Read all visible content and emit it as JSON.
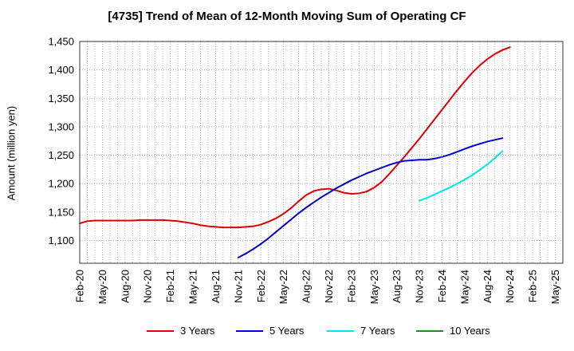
{
  "chart_data": {
    "type": "line",
    "title": "[4735]  Trend of Mean of 12-Month Moving Sum of Operating CF",
    "xlabel": "",
    "ylabel": "Amount (million yen)",
    "ylim": [
      1060,
      1450
    ],
    "y_ticks": [
      1100,
      1150,
      1200,
      1250,
      1300,
      1350,
      1400,
      1450
    ],
    "y_tick_labels": [
      "1,100",
      "1,150",
      "1,200",
      "1,250",
      "1,300",
      "1,350",
      "1,400",
      "1,450"
    ],
    "x_tick_labels": [
      "Feb-20",
      "May-20",
      "Aug-20",
      "Nov-20",
      "Feb-21",
      "May-21",
      "Aug-21",
      "Nov-21",
      "Feb-22",
      "May-22",
      "Aug-22",
      "Nov-22",
      "Feb-23",
      "May-23",
      "Aug-23",
      "Nov-23",
      "Feb-24",
      "May-24",
      "Aug-24",
      "Nov-24",
      "Feb-25",
      "May-25"
    ],
    "x_months": 64,
    "grid": true,
    "legend_position": "bottom",
    "series": [
      {
        "name": "3 Years",
        "color": "#dd0000",
        "start_index": 0,
        "values": [
          1130,
          1134,
          1135,
          1135,
          1135,
          1135,
          1135,
          1135,
          1136,
          1136,
          1136,
          1136,
          1135,
          1134,
          1132,
          1130,
          1127,
          1125,
          1124,
          1123,
          1123,
          1123,
          1124,
          1125,
          1128,
          1133,
          1139,
          1147,
          1157,
          1169,
          1180,
          1187,
          1190,
          1191,
          1188,
          1184,
          1182,
          1183,
          1186,
          1193,
          1203,
          1217,
          1232,
          1247,
          1263,
          1279,
          1296,
          1313,
          1330,
          1347,
          1364,
          1380,
          1395,
          1408,
          1419,
          1428,
          1435,
          1440
        ]
      },
      {
        "name": "5 Years",
        "color": "#0000cc",
        "start_index": 21,
        "values": [
          1070,
          1077,
          1085,
          1094,
          1104,
          1115,
          1126,
          1137,
          1148,
          1158,
          1167,
          1176,
          1184,
          1192,
          1199,
          1206,
          1212,
          1218,
          1223,
          1228,
          1233,
          1237,
          1240,
          1241,
          1242,
          1242,
          1244,
          1247,
          1251,
          1256,
          1261,
          1266,
          1270,
          1274,
          1277,
          1280
        ]
      },
      {
        "name": "7 Years",
        "color": "#00e5ee",
        "start_index": 45,
        "values": [
          1170,
          1175,
          1181,
          1187,
          1193,
          1200,
          1207,
          1215,
          1224,
          1234,
          1245,
          1257
        ]
      },
      {
        "name": "10 Years",
        "color": "#228b22",
        "start_index": 0,
        "values": []
      }
    ]
  }
}
